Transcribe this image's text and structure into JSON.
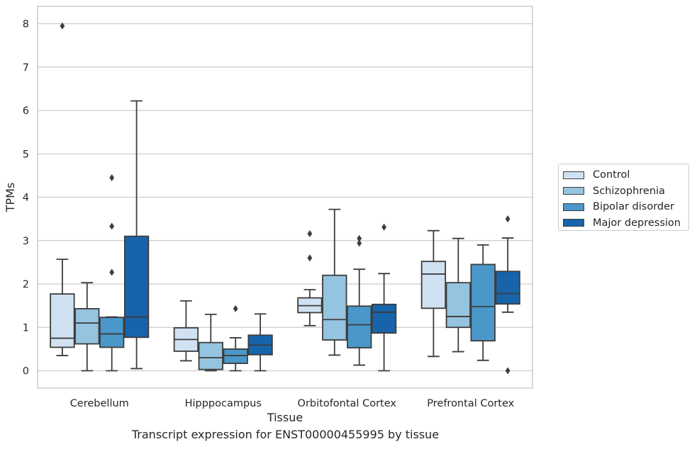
{
  "caption": "Transcript expression for ENST00000455995 by tissue",
  "legend": {
    "items": [
      {
        "label": "Control",
        "color": "#d0e1f2"
      },
      {
        "label": "Schizophrenia",
        "color": "#94c4df"
      },
      {
        "label": "Bipolar disorder",
        "color": "#4a98c9"
      },
      {
        "label": "Major depression",
        "color": "#1764ab"
      }
    ]
  },
  "chart_data": {
    "type": "box",
    "xlabel": "Tissue",
    "ylabel": "TPMs",
    "ylim": [
      -0.4,
      8.4
    ],
    "yticks": [
      0,
      1,
      2,
      3,
      4,
      5,
      6,
      7,
      8
    ],
    "grid": "horizontal",
    "legend_position": "right",
    "categories": [
      "Cerebellum",
      "Hipppocampus",
      "Orbitofontal Cortex",
      "Prefrontal Cortex"
    ],
    "series": [
      {
        "name": "Control",
        "color": "#d0e1f2",
        "boxes": [
          {
            "whisker_low": 0.35,
            "q1": 0.54,
            "median": 0.75,
            "q3": 1.77,
            "whisker_high": 2.57,
            "outliers": [
              7.95
            ]
          },
          {
            "whisker_low": 0.23,
            "q1": 0.45,
            "median": 0.72,
            "q3": 0.99,
            "whisker_high": 1.61,
            "outliers": []
          },
          {
            "whisker_low": 1.04,
            "q1": 1.34,
            "median": 1.5,
            "q3": 1.68,
            "whisker_high": 1.87,
            "outliers": [
              3.16,
              2.6
            ]
          },
          {
            "whisker_low": 0.33,
            "q1": 1.44,
            "median": 2.23,
            "q3": 2.52,
            "whisker_high": 3.23,
            "outliers": []
          }
        ]
      },
      {
        "name": "Schizophrenia",
        "color": "#94c4df",
        "boxes": [
          {
            "whisker_low": 0.0,
            "q1": 0.62,
            "median": 1.1,
            "q3": 1.43,
            "whisker_high": 2.03,
            "outliers": []
          },
          {
            "whisker_low": 0.0,
            "q1": 0.03,
            "median": 0.3,
            "q3": 0.65,
            "whisker_high": 1.3,
            "outliers": []
          },
          {
            "whisker_low": 0.36,
            "q1": 0.71,
            "median": 1.18,
            "q3": 2.2,
            "whisker_high": 3.72,
            "outliers": []
          },
          {
            "whisker_low": 0.44,
            "q1": 1.0,
            "median": 1.25,
            "q3": 2.03,
            "whisker_high": 3.05,
            "outliers": []
          }
        ]
      },
      {
        "name": "Bipolar disorder",
        "color": "#4a98c9",
        "boxes": [
          {
            "whisker_low": 0.0,
            "q1": 0.54,
            "median": 0.85,
            "q3": 1.23,
            "whisker_high": 1.24,
            "outliers": [
              4.45,
              3.33,
              2.27
            ]
          },
          {
            "whisker_low": 0.0,
            "q1": 0.17,
            "median": 0.35,
            "q3": 0.5,
            "whisker_high": 0.76,
            "outliers": [
              1.43
            ]
          },
          {
            "whisker_low": 0.13,
            "q1": 0.53,
            "median": 1.06,
            "q3": 1.49,
            "whisker_high": 2.34,
            "outliers": [
              3.05,
              2.94
            ]
          },
          {
            "whisker_low": 0.24,
            "q1": 0.69,
            "median": 1.48,
            "q3": 2.45,
            "whisker_high": 2.9,
            "outliers": []
          }
        ]
      },
      {
        "name": "Major depression",
        "color": "#1764ab",
        "boxes": [
          {
            "whisker_low": 0.05,
            "q1": 0.77,
            "median": 1.24,
            "q3": 3.1,
            "whisker_high": 6.22,
            "outliers": []
          },
          {
            "whisker_low": 0.0,
            "q1": 0.37,
            "median": 0.59,
            "q3": 0.82,
            "whisker_high": 1.31,
            "outliers": []
          },
          {
            "whisker_low": 0.0,
            "q1": 0.87,
            "median": 1.35,
            "q3": 1.53,
            "whisker_high": 2.24,
            "outliers": [
              3.31
            ]
          },
          {
            "whisker_low": 1.35,
            "q1": 1.54,
            "median": 1.78,
            "q3": 2.29,
            "whisker_high": 3.06,
            "outliers": [
              3.5,
              0.0
            ]
          }
        ]
      }
    ]
  }
}
